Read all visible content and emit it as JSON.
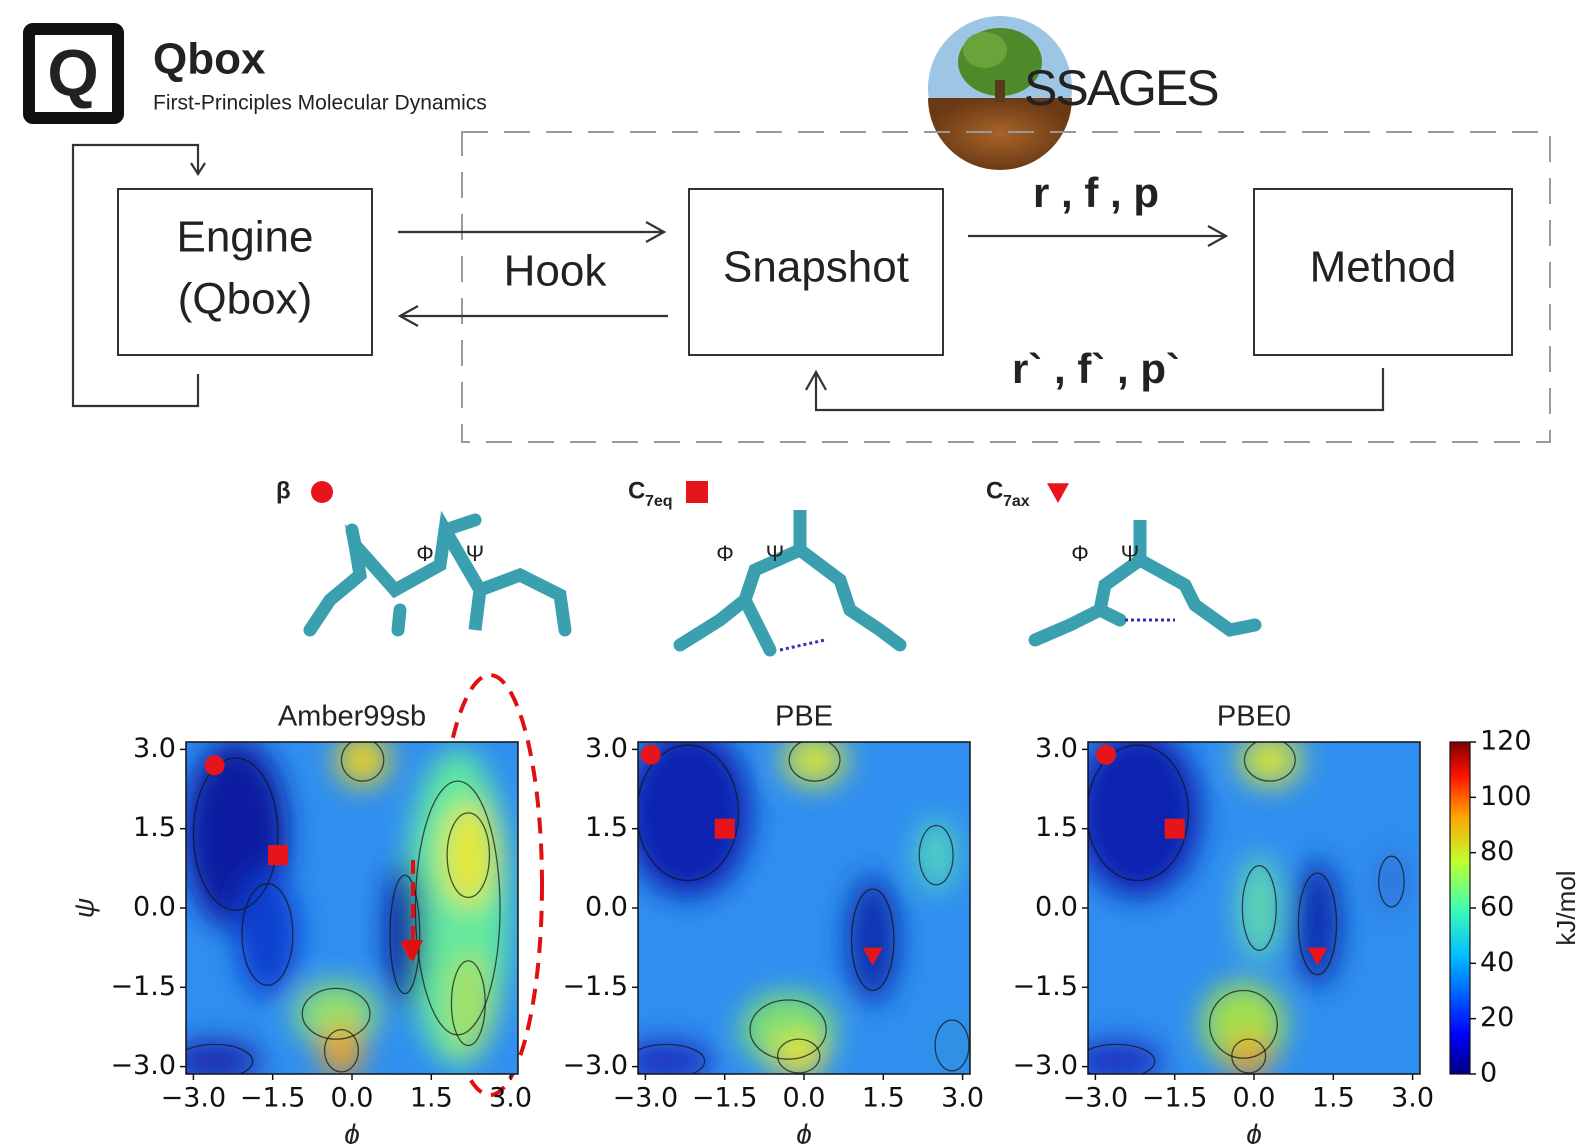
{
  "header": {
    "logo_letter": "Q",
    "title": "Qbox",
    "subtitle": "First-Principles Molecular Dynamics",
    "partner": "SSAGES"
  },
  "diagram": {
    "engine": [
      "Engine",
      "(Qbox)"
    ],
    "hook": "Hook",
    "snapshot": "Snapshot",
    "method": "Method",
    "forward": "r , f , p",
    "back": "r` , f` , p`"
  },
  "conformers": [
    {
      "name": "β",
      "sub": "",
      "marker": "circle"
    },
    {
      "name": "C",
      "sub": "7eq",
      "marker": "square"
    },
    {
      "name": "C",
      "sub": "7ax",
      "marker": "triangle"
    }
  ],
  "torsions": [
    "Φ",
    "Ψ"
  ],
  "chart_data": [
    {
      "type": "contour",
      "title": "Amber99sb",
      "xlabel": "ϕ",
      "ylabel": "ψ",
      "marker_color": "#e8141b",
      "xlim": [
        -3.14,
        3.14
      ],
      "ylim": [
        -3.14,
        3.14
      ],
      "xticks": [
        {
          "value": -3,
          "label": "−3.0"
        },
        {
          "value": -1.5,
          "label": "−1.5"
        },
        {
          "value": 0,
          "label": "0.0"
        },
        {
          "value": 1.5,
          "label": "1.5"
        },
        {
          "value": 3,
          "label": "3.0"
        }
      ],
      "yticks": [
        {
          "value": -3,
          "label": "−3.0"
        },
        {
          "value": -1.5,
          "label": "−1.5"
        },
        {
          "value": 0,
          "label": "0.0"
        },
        {
          "value": 1.5,
          "label": "1.5"
        },
        {
          "value": 3,
          "label": "3.0"
        }
      ],
      "markers": {
        "x": [
          -2.6,
          -1.4,
          1.1
        ],
        "y": [
          2.7,
          1.0,
          -0.8
        ]
      }
    },
    {
      "type": "contour",
      "title": "PBE",
      "xlabel": "ϕ",
      "marker_color": "#e8141b",
      "xlim": [
        -3.14,
        3.14
      ],
      "ylim": [
        -3.14,
        3.14
      ],
      "xticks": [
        {
          "value": -3,
          "label": "−3.0"
        },
        {
          "value": -1.5,
          "label": "−1.5"
        },
        {
          "value": 0,
          "label": "0.0"
        },
        {
          "value": 1.5,
          "label": "1.5"
        },
        {
          "value": 3,
          "label": "3.0"
        }
      ],
      "yticks": [
        {
          "value": -3,
          "label": "−3.0"
        },
        {
          "value": -1.5,
          "label": "−1.5"
        },
        {
          "value": 0,
          "label": "0.0"
        },
        {
          "value": 1.5,
          "label": "1.5"
        },
        {
          "value": 3,
          "label": "3.0"
        }
      ],
      "markers": {
        "x": [
          -2.9,
          -1.5,
          1.3
        ],
        "y": [
          2.9,
          1.5,
          -0.9
        ]
      }
    },
    {
      "type": "contour",
      "title": "PBE0",
      "xlabel": "ϕ",
      "marker_color": "#e8141b",
      "xlim": [
        -3.14,
        3.14
      ],
      "ylim": [
        -3.14,
        3.14
      ],
      "xticks": [
        {
          "value": -3,
          "label": "−3.0"
        },
        {
          "value": -1.5,
          "label": "−1.5"
        },
        {
          "value": 0,
          "label": "0.0"
        },
        {
          "value": 1.5,
          "label": "1.5"
        },
        {
          "value": 3,
          "label": "3.0"
        }
      ],
      "yticks": [
        {
          "value": -3,
          "label": "−3.0"
        },
        {
          "value": -1.5,
          "label": "−1.5"
        },
        {
          "value": 0,
          "label": "0.0"
        },
        {
          "value": 1.5,
          "label": "1.5"
        },
        {
          "value": 3,
          "label": "3.0"
        }
      ],
      "markers": {
        "x": [
          -2.8,
          -1.5,
          1.2
        ],
        "y": [
          2.9,
          1.5,
          -0.9
        ]
      },
      "colorbar": {
        "label": "kJ/mol",
        "lim": [
          0,
          120
        ],
        "ticks": [
          0,
          20,
          40,
          60,
          80,
          100,
          120
        ]
      }
    }
  ]
}
